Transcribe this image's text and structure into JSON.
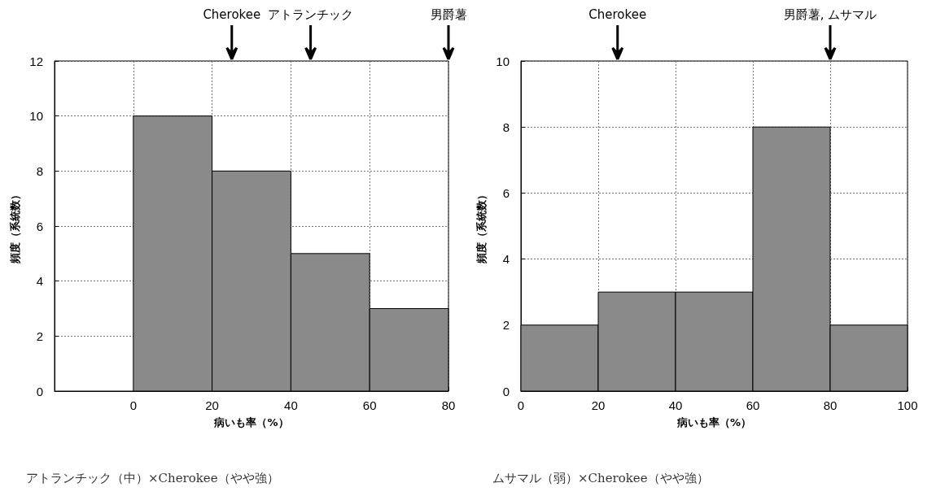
{
  "chart_data": [
    {
      "type": "histogram",
      "title": "アトランチック（中）×Cherokee（やや強）",
      "xlabel": "病いも率（%）",
      "ylabel": "頻度（系統数）",
      "bins": [
        0,
        20,
        40,
        60,
        80
      ],
      "values": [
        10,
        8,
        5,
        3
      ],
      "color": "#8a8a8a",
      "xlim": [
        -20,
        80
      ],
      "xticks": [
        0,
        20,
        40,
        60,
        80
      ],
      "ylim": [
        0,
        12
      ],
      "yticks": [
        0,
        2,
        4,
        6,
        8,
        10,
        12
      ],
      "grid": true,
      "ref_lines": [
        {
          "axis": "x",
          "value": 25,
          "label": "Cherokee"
        },
        {
          "axis": "x",
          "value": 45,
          "label": "アトランチック"
        },
        {
          "axis": "x",
          "value": 80,
          "label": "男爵薯"
        }
      ]
    },
    {
      "type": "histogram",
      "title": "ムサマル（弱）×Cherokee（やや強）",
      "xlabel": "病いも率（%）",
      "ylabel": "頻度（系統数）",
      "bins": [
        0,
        20,
        40,
        60,
        80,
        100
      ],
      "values": [
        2,
        3,
        3,
        8,
        2
      ],
      "color": "#8a8a8a",
      "xlim": [
        0,
        100
      ],
      "xticks": [
        0,
        20,
        40,
        60,
        80,
        100
      ],
      "ylim": [
        0,
        10
      ],
      "yticks": [
        0,
        2,
        4,
        6,
        8,
        10
      ],
      "grid": true,
      "ref_lines": [
        {
          "axis": "x",
          "value": 25,
          "label": "Cherokee"
        },
        {
          "axis": "x",
          "value": 80,
          "label": "男爵薯, ムサマル"
        }
      ]
    }
  ]
}
